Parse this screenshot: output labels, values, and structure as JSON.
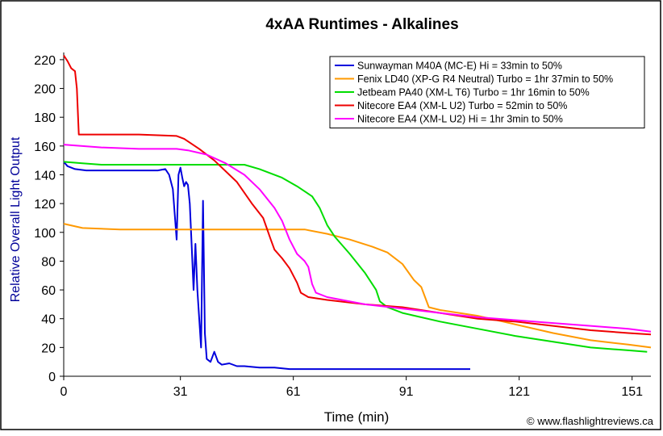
{
  "chart_data": {
    "type": "line",
    "title": "4xAA Runtimes - Alkalines",
    "xlabel": "Time (min)",
    "ylabel": "Relative Overall Light Output",
    "xlim": [
      0,
      156
    ],
    "ylim": [
      0,
      225
    ],
    "xticks": [
      0,
      31,
      61,
      91,
      121,
      151
    ],
    "yticks": [
      0,
      20,
      40,
      60,
      80,
      100,
      120,
      140,
      160,
      180,
      200,
      220
    ],
    "grid": false,
    "legend_position": "top-right",
    "credit": "© www.flashlightreviews.ca",
    "series": [
      {
        "name": "Sunwayman M40A (MC-E) Hi = 33min to 50%",
        "color": "#0000dd",
        "points": [
          [
            0,
            149
          ],
          [
            1,
            146
          ],
          [
            3,
            144
          ],
          [
            6,
            143
          ],
          [
            15,
            143
          ],
          [
            25,
            143
          ],
          [
            27,
            144
          ],
          [
            28,
            140
          ],
          [
            29,
            130
          ],
          [
            30,
            95
          ],
          [
            30.5,
            140
          ],
          [
            31,
            145
          ],
          [
            31.5,
            138
          ],
          [
            32,
            132
          ],
          [
            32.5,
            135
          ],
          [
            33,
            133
          ],
          [
            33.5,
            120
          ],
          [
            34,
            90
          ],
          [
            34.5,
            60
          ],
          [
            35,
            92
          ],
          [
            35.5,
            60
          ],
          [
            36,
            40
          ],
          [
            36.5,
            20
          ],
          [
            37,
            122
          ],
          [
            37.5,
            30
          ],
          [
            38,
            12
          ],
          [
            39,
            10
          ],
          [
            40,
            17
          ],
          [
            41,
            10
          ],
          [
            42,
            8
          ],
          [
            44,
            9
          ],
          [
            46,
            7
          ],
          [
            48,
            7
          ],
          [
            52,
            6
          ],
          [
            56,
            6
          ],
          [
            60,
            5
          ],
          [
            70,
            5
          ],
          [
            80,
            5
          ],
          [
            90,
            5
          ],
          [
            100,
            5
          ],
          [
            108,
            5
          ]
        ]
      },
      {
        "name": "Fenix LD40 (XP-G R4 Neutral) Turbo = 1hr 37min to 50%",
        "color": "#ff9900",
        "points": [
          [
            0,
            106
          ],
          [
            5,
            103
          ],
          [
            15,
            102
          ],
          [
            30,
            102
          ],
          [
            50,
            102
          ],
          [
            60,
            102
          ],
          [
            64,
            102
          ],
          [
            70,
            99
          ],
          [
            76,
            95
          ],
          [
            82,
            90
          ],
          [
            86,
            86
          ],
          [
            90,
            78
          ],
          [
            93,
            67
          ],
          [
            95,
            62
          ],
          [
            96,
            55
          ],
          [
            97,
            48
          ],
          [
            100,
            46
          ],
          [
            110,
            42
          ],
          [
            120,
            36
          ],
          [
            130,
            30
          ],
          [
            140,
            25
          ],
          [
            150,
            22
          ],
          [
            156,
            20
          ]
        ]
      },
      {
        "name": "Jetbeam PA40 (XM-L T6) Turbo = 1hr 16min to 50%",
        "color": "#00dd00",
        "points": [
          [
            0,
            149
          ],
          [
            5,
            148
          ],
          [
            10,
            147
          ],
          [
            20,
            147
          ],
          [
            30,
            147
          ],
          [
            40,
            147
          ],
          [
            48,
            147
          ],
          [
            52,
            144
          ],
          [
            58,
            138
          ],
          [
            62,
            132
          ],
          [
            66,
            125
          ],
          [
            68,
            117
          ],
          [
            70,
            105
          ],
          [
            72,
            97
          ],
          [
            76,
            85
          ],
          [
            80,
            72
          ],
          [
            83,
            60
          ],
          [
            84,
            52
          ],
          [
            86,
            48
          ],
          [
            90,
            44
          ],
          [
            100,
            38
          ],
          [
            110,
            33
          ],
          [
            120,
            28
          ],
          [
            130,
            24
          ],
          [
            140,
            20
          ],
          [
            150,
            18
          ],
          [
            155,
            17
          ]
        ]
      },
      {
        "name": "Nitecore EA4 (XM-L U2) Turbo = 52min to 50%",
        "color": "#ee0000",
        "points": [
          [
            0,
            223
          ],
          [
            1,
            219
          ],
          [
            2,
            214
          ],
          [
            3,
            212
          ],
          [
            3.5,
            200
          ],
          [
            4,
            168
          ],
          [
            10,
            168
          ],
          [
            20,
            168
          ],
          [
            30,
            167
          ],
          [
            32,
            165
          ],
          [
            36,
            158
          ],
          [
            40,
            150
          ],
          [
            46,
            135
          ],
          [
            50,
            120
          ],
          [
            53,
            110
          ],
          [
            55,
            95
          ],
          [
            56,
            88
          ],
          [
            58,
            82
          ],
          [
            60,
            75
          ],
          [
            62,
            65
          ],
          [
            63,
            58
          ],
          [
            65,
            55
          ],
          [
            70,
            53
          ],
          [
            80,
            50
          ],
          [
            90,
            48
          ],
          [
            100,
            44
          ],
          [
            110,
            40
          ],
          [
            120,
            38
          ],
          [
            130,
            35
          ],
          [
            140,
            32
          ],
          [
            150,
            30
          ],
          [
            156,
            29
          ]
        ]
      },
      {
        "name": "Nitecore EA4 (XM-L U2) Hi = 1hr 3min to 50%",
        "color": "#ff00ff",
        "points": [
          [
            0,
            161
          ],
          [
            10,
            159
          ],
          [
            20,
            158
          ],
          [
            30,
            158
          ],
          [
            33,
            157
          ],
          [
            38,
            154
          ],
          [
            43,
            148
          ],
          [
            48,
            140
          ],
          [
            52,
            130
          ],
          [
            56,
            117
          ],
          [
            58,
            108
          ],
          [
            60,
            95
          ],
          [
            62,
            85
          ],
          [
            64,
            80
          ],
          [
            65,
            76
          ],
          [
            66,
            64
          ],
          [
            67,
            58
          ],
          [
            70,
            55
          ],
          [
            80,
            50
          ],
          [
            90,
            47
          ],
          [
            100,
            44
          ],
          [
            110,
            41
          ],
          [
            120,
            39
          ],
          [
            130,
            37
          ],
          [
            140,
            35
          ],
          [
            150,
            33
          ],
          [
            156,
            31
          ]
        ]
      }
    ]
  }
}
